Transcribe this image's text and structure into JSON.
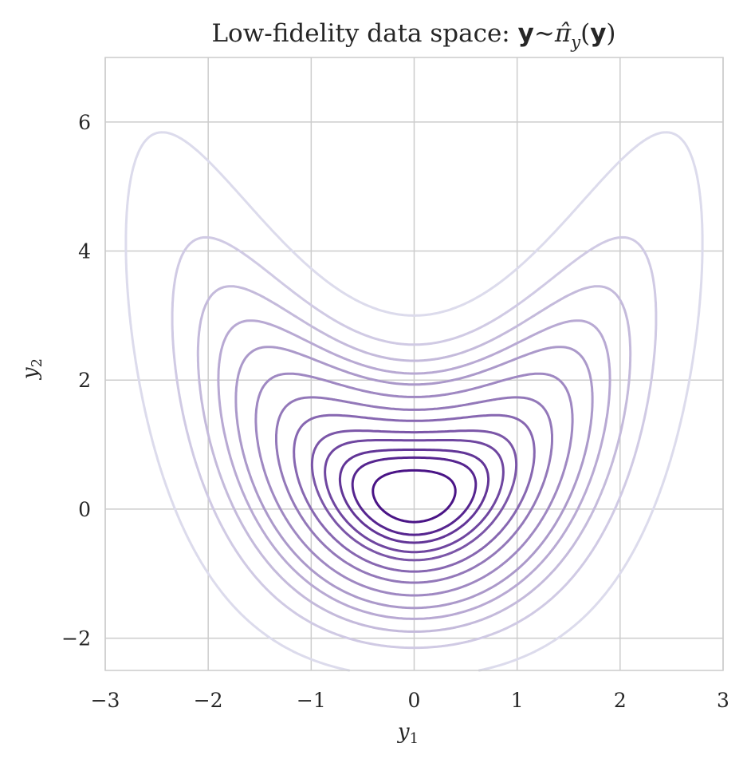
{
  "chart_data": {
    "type": "contour",
    "title": "Low-fidelity data space:",
    "title_math": {
      "var": "y",
      "sim": "∼",
      "pi": "π̂",
      "sub": "y",
      "open": "(",
      "close": ")"
    },
    "xlabel": {
      "base": "y",
      "sub": "1"
    },
    "ylabel": {
      "base": "y",
      "sub": "2"
    },
    "xlim": [
      -3,
      3
    ],
    "ylim": [
      -2.5,
      7
    ],
    "xticks": [
      -3,
      -2,
      -1,
      0,
      1,
      2,
      3
    ],
    "xtick_labels": [
      "−3",
      "−2",
      "−1",
      "0",
      "1",
      "2",
      "3"
    ],
    "yticks": [
      -2,
      0,
      2,
      4,
      6
    ],
    "ytick_labels": [
      "−2",
      "0",
      "2",
      "4",
      "6"
    ],
    "grid": true,
    "colormap": [
      "#dcdbec",
      "#4a1486"
    ],
    "density_model": {
      "y1_mean": 0.0,
      "y1_sd": 0.95,
      "y2_mean_offset": 0.2,
      "y2_curvature": 0.5,
      "y2_sd_base": 0.95,
      "y2_sd_growth": 0.15
    },
    "levels": [
      0.013,
      0.047,
      0.087,
      0.135,
      0.19,
      0.27,
      0.37,
      0.47,
      0.58,
      0.66,
      0.75,
      0.82,
      0.915
    ]
  }
}
